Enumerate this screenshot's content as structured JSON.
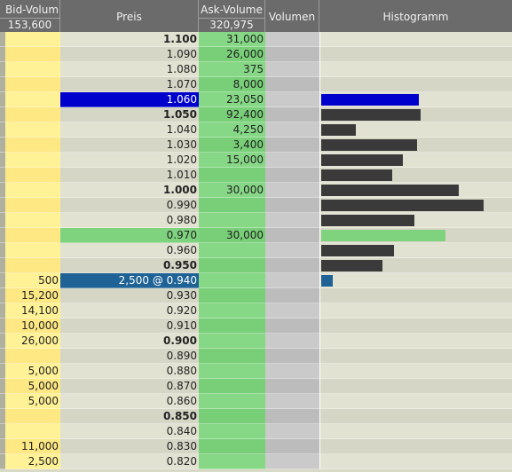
{
  "header": {
    "bid_label": "Bid-Volum",
    "bid_total": "153,600",
    "price_label": "Preis",
    "ask_label": "Ask-Volume",
    "ask_total": "320,975",
    "volume_label": "Volumen",
    "histogram_label": "Histogramm"
  },
  "colors": {
    "bar_default": "#3a3a3a",
    "bar_selected": "#0000cc",
    "bar_green": "#7fd37f",
    "bar_trade": "#1e6296"
  },
  "histogram_max": 1.0,
  "rows": [
    {
      "bid": "",
      "price": "1.100",
      "ask": "31,000",
      "bold": true,
      "hist": 0
    },
    {
      "bid": "",
      "price": "1.090",
      "ask": "26,000",
      "bold": false,
      "hist": 0
    },
    {
      "bid": "",
      "price": "1.080",
      "ask": "375",
      "bold": false,
      "hist": 0
    },
    {
      "bid": "",
      "price": "1.070",
      "ask": "8,000",
      "bold": false,
      "hist": 0
    },
    {
      "bid": "",
      "price": "1.060",
      "ask": "23,050",
      "bold": false,
      "hist": 0.51,
      "style": "blue"
    },
    {
      "bid": "",
      "price": "1.050",
      "ask": "92,400",
      "bold": true,
      "hist": 0.52
    },
    {
      "bid": "",
      "price": "1.040",
      "ask": "4,250",
      "bold": false,
      "hist": 0.18
    },
    {
      "bid": "",
      "price": "1.030",
      "ask": "3,400",
      "bold": false,
      "hist": 0.5
    },
    {
      "bid": "",
      "price": "1.020",
      "ask": "15,000",
      "bold": false,
      "hist": 0.43
    },
    {
      "bid": "",
      "price": "1.010",
      "ask": "",
      "bold": false,
      "hist": 0.37
    },
    {
      "bid": "",
      "price": "1.000",
      "ask": "30,000",
      "bold": true,
      "hist": 0.72
    },
    {
      "bid": "",
      "price": "0.990",
      "ask": "",
      "bold": false,
      "hist": 0.85
    },
    {
      "bid": "",
      "price": "0.980",
      "ask": "",
      "bold": false,
      "hist": 0.49
    },
    {
      "bid": "",
      "price": "0.970",
      "ask": "30,000",
      "bold": false,
      "hist": 0.65,
      "style": "green"
    },
    {
      "bid": "",
      "price": "0.960",
      "ask": "",
      "bold": false,
      "hist": 0.38
    },
    {
      "bid": "",
      "price": "0.950",
      "ask": "",
      "bold": true,
      "hist": 0.32
    },
    {
      "bid": "500",
      "price": "2,500 @ 0.940",
      "ask": "",
      "bold": false,
      "hist": 0.06,
      "style": "trade"
    },
    {
      "bid": "15,200",
      "price": "0.930",
      "ask": "",
      "bold": false,
      "hist": 0
    },
    {
      "bid": "14,100",
      "price": "0.920",
      "ask": "",
      "bold": false,
      "hist": 0
    },
    {
      "bid": "10,000",
      "price": "0.910",
      "ask": "",
      "bold": false,
      "hist": 0
    },
    {
      "bid": "26,000",
      "price": "0.900",
      "ask": "",
      "bold": true,
      "hist": 0
    },
    {
      "bid": "",
      "price": "0.890",
      "ask": "",
      "bold": false,
      "hist": 0
    },
    {
      "bid": "5,000",
      "price": "0.880",
      "ask": "",
      "bold": false,
      "hist": 0
    },
    {
      "bid": "5,000",
      "price": "0.870",
      "ask": "",
      "bold": false,
      "hist": 0
    },
    {
      "bid": "5,000",
      "price": "0.860",
      "ask": "",
      "bold": false,
      "hist": 0
    },
    {
      "bid": "",
      "price": "0.850",
      "ask": "",
      "bold": true,
      "hist": 0
    },
    {
      "bid": "",
      "price": "0.840",
      "ask": "",
      "bold": false,
      "hist": 0
    },
    {
      "bid": "11,000",
      "price": "0.830",
      "ask": "",
      "bold": false,
      "hist": 0
    },
    {
      "bid": "2,500",
      "price": "0.820",
      "ask": "",
      "bold": false,
      "hist": 0
    }
  ]
}
